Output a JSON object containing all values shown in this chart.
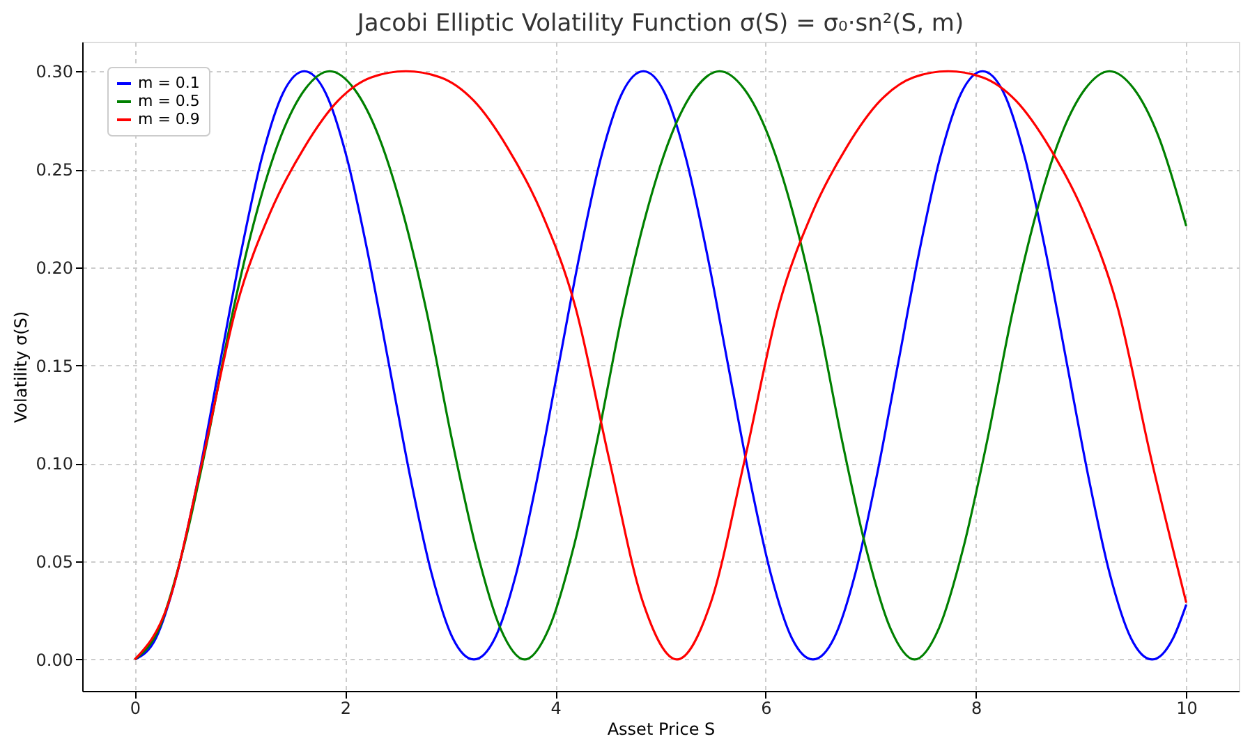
{
  "chart_data": {
    "type": "line",
    "title": "Jacobi Elliptic Volatility Function σ(S) = σ₀·sn²(S, m)",
    "xlabel": "Asset Price S",
    "ylabel": "Volatility σ(S)",
    "xlim": [
      -0.5,
      10.5
    ],
    "xticks": [
      0,
      2,
      4,
      6,
      8,
      10
    ],
    "ylim": [
      -0.016,
      0.315
    ],
    "yticks": [
      {
        "value": 0,
        "label": "0.00"
      },
      {
        "value": 0.05,
        "label": "0.05"
      },
      {
        "value": 0.1,
        "label": "0.10"
      },
      {
        "value": 0.15,
        "label": "0.15"
      },
      {
        "value": 0.2,
        "label": "0.20"
      },
      {
        "value": 0.25,
        "label": "0.25"
      },
      {
        "value": 0.3,
        "label": "0.30"
      }
    ],
    "grid": true,
    "legend": "top left",
    "line_style": "solid",
    "marker": "none",
    "series": [
      {
        "name": "m = 0.1",
        "color": "#0000ff",
        "x": [
          0,
          0.202,
          0.403,
          0.605,
          0.806,
          1.008,
          1.209,
          1.411,
          1.612,
          1.814,
          2.016,
          2.217,
          2.419,
          2.62,
          2.822,
          3.023,
          3.225,
          3.426,
          3.628,
          3.83,
          4.031,
          4.233,
          4.434,
          4.636,
          4.837,
          5.039,
          5.24,
          5.442,
          5.643,
          5.845,
          6.047,
          6.248,
          6.45,
          6.651,
          6.853,
          7.054,
          7.256,
          7.457,
          7.659,
          7.861,
          8.062,
          8.264,
          8.465,
          8.667,
          8.868,
          9.07,
          9.271,
          9.473,
          9.675,
          9.876,
          10
        ],
        "values": [
          0,
          0.011,
          0.044,
          0.093,
          0.15,
          0.207,
          0.256,
          0.289,
          0.3,
          0.289,
          0.256,
          0.207,
          0.15,
          0.093,
          0.044,
          0.011,
          0,
          0.011,
          0.044,
          0.093,
          0.15,
          0.207,
          0.256,
          0.289,
          0.3,
          0.289,
          0.256,
          0.207,
          0.15,
          0.093,
          0.044,
          0.011,
          0,
          0.011,
          0.044,
          0.093,
          0.15,
          0.207,
          0.256,
          0.289,
          0.3,
          0.289,
          0.256,
          0.207,
          0.15,
          0.093,
          0.044,
          0.011,
          0,
          0.011,
          0.028
        ]
      },
      {
        "name": "m = 0.5",
        "color": "#008000",
        "x": [
          0,
          0.232,
          0.464,
          0.695,
          0.927,
          1.159,
          1.391,
          1.622,
          1.854,
          2.086,
          2.318,
          2.549,
          2.781,
          3.013,
          3.245,
          3.476,
          3.708,
          3.94,
          4.172,
          4.403,
          4.635,
          4.867,
          5.099,
          5.33,
          5.562,
          5.794,
          6.026,
          6.258,
          6.489,
          6.721,
          6.953,
          7.185,
          7.416,
          7.648,
          7.88,
          8.112,
          8.343,
          8.575,
          8.807,
          9.039,
          9.27,
          9.502,
          9.734,
          10
        ],
        "values": [
          0,
          0.016,
          0.057,
          0.113,
          0.176,
          0.228,
          0.267,
          0.291,
          0.3,
          0.291,
          0.267,
          0.228,
          0.176,
          0.113,
          0.057,
          0.016,
          0,
          0.016,
          0.057,
          0.113,
          0.176,
          0.228,
          0.267,
          0.291,
          0.3,
          0.291,
          0.267,
          0.228,
          0.176,
          0.113,
          0.057,
          0.016,
          0,
          0.016,
          0.057,
          0.113,
          0.176,
          0.228,
          0.267,
          0.291,
          0.3,
          0.291,
          0.267,
          0.221
        ]
      },
      {
        "name": "m = 0.9",
        "color": "#ff0000",
        "x": [
          0,
          0.322,
          0.645,
          0.967,
          1.289,
          1.611,
          1.934,
          2.256,
          2.578,
          2.9,
          3.223,
          3.545,
          3.867,
          4.189,
          4.512,
          4.834,
          5.156,
          5.478,
          5.801,
          6.123,
          6.445,
          6.767,
          7.09,
          7.412,
          7.734,
          8.056,
          8.379,
          8.701,
          9.023,
          9.345,
          9.668,
          10
        ],
        "values": [
          0,
          0.029,
          0.102,
          0.18,
          0.228,
          0.261,
          0.285,
          0.297,
          0.3,
          0.297,
          0.285,
          0.261,
          0.228,
          0.18,
          0.102,
          0.029,
          0,
          0.029,
          0.102,
          0.18,
          0.228,
          0.261,
          0.285,
          0.297,
          0.3,
          0.297,
          0.285,
          0.261,
          0.228,
          0.18,
          0.102,
          0.029
        ]
      }
    ]
  }
}
